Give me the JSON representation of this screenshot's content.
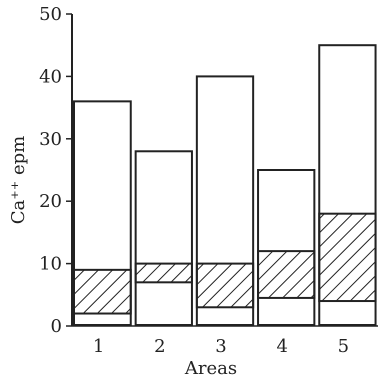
{
  "chart_data": {
    "type": "bar",
    "title": "",
    "xlabel": "Areas",
    "ylabel": "Ca⁺⁺ epm",
    "ylim": [
      0,
      50
    ],
    "yticks": [
      0,
      10,
      20,
      30,
      40,
      50
    ],
    "categories": [
      "1",
      "2",
      "3",
      "4",
      "5"
    ],
    "grid": false,
    "legend": "none",
    "series": [
      {
        "style": "open",
        "values": [
          36,
          28,
          40,
          25,
          45
        ]
      },
      {
        "style": "hatched-range",
        "ranges": [
          [
            2,
            9
          ],
          [
            7,
            10
          ],
          [
            3,
            10
          ],
          [
            4.5,
            12
          ],
          [
            4,
            18
          ]
        ]
      }
    ]
  }
}
